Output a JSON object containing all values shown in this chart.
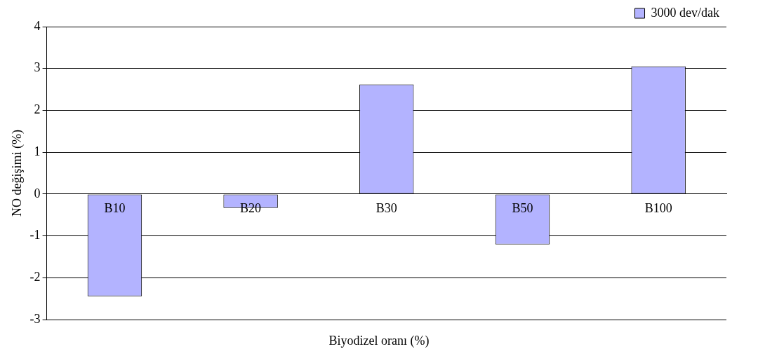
{
  "chart_data": {
    "type": "bar",
    "xlabel": "Biyodizel oranı (%)",
    "ylabel": "NO değişimi (%)",
    "categories": [
      "B10",
      "B20",
      "B30",
      "B50",
      "B100"
    ],
    "series": [
      {
        "name": "3000 dev/dak",
        "color": "#b3b3ff",
        "values": [
          -2.44,
          -0.33,
          2.62,
          -1.2,
          3.05
        ]
      }
    ],
    "ylim": [
      -3,
      4
    ],
    "yticks": [
      -3,
      -2,
      -1,
      0,
      1,
      2,
      3,
      4
    ],
    "grid": "y",
    "legend": "top right"
  }
}
